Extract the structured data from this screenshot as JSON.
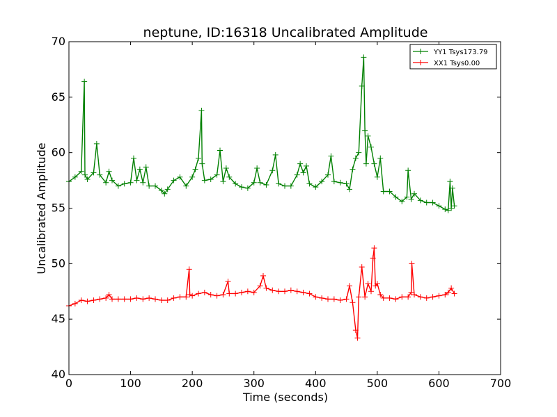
{
  "chart_data": {
    "type": "line",
    "title": "neptune, ID:16318 Uncalibrated Amplitude",
    "xlabel": "Time (seconds)",
    "ylabel": "Uncalibrated Amplitude",
    "xlim": [
      0,
      700
    ],
    "ylim": [
      40,
      70
    ],
    "xticks": [
      "0",
      "100",
      "200",
      "300",
      "400",
      "500",
      "600",
      "700"
    ],
    "yticks": [
      "40",
      "45",
      "50",
      "55",
      "60",
      "65",
      "70"
    ],
    "grid": false,
    "legend_position": "top-right",
    "marker": "+",
    "series": [
      {
        "name": "YY1 Tsys173.79",
        "color": "#008000",
        "x": [
          0,
          10,
          20,
          25,
          26,
          30,
          40,
          45,
          50,
          60,
          65,
          70,
          80,
          90,
          100,
          105,
          110,
          115,
          120,
          125,
          130,
          140,
          150,
          155,
          160,
          170,
          180,
          190,
          200,
          205,
          210,
          215,
          216,
          220,
          230,
          240,
          245,
          250,
          255,
          260,
          270,
          280,
          290,
          300,
          305,
          310,
          320,
          330,
          335,
          340,
          350,
          360,
          370,
          375,
          380,
          385,
          390,
          400,
          410,
          420,
          425,
          430,
          440,
          450,
          455,
          460,
          465,
          470,
          475,
          478,
          480,
          482,
          485,
          490,
          495,
          500,
          505,
          510,
          520,
          530,
          540,
          548,
          550,
          555,
          560,
          570,
          580,
          590,
          600,
          610,
          615,
          618,
          620,
          622,
          625
        ],
        "y": [
          57.4,
          57.8,
          58.3,
          66.4,
          58.0,
          57.6,
          58.2,
          60.8,
          58.0,
          57.3,
          58.3,
          57.5,
          57.0,
          57.2,
          57.3,
          59.5,
          57.5,
          58.5,
          57.3,
          58.7,
          57.0,
          57.0,
          56.6,
          56.3,
          56.7,
          57.5,
          57.8,
          57.0,
          57.8,
          58.5,
          59.5,
          63.8,
          59.0,
          57.5,
          57.6,
          58.0,
          60.2,
          57.4,
          58.6,
          57.8,
          57.2,
          56.9,
          56.8,
          57.3,
          58.6,
          57.3,
          57.1,
          58.4,
          59.8,
          57.2,
          57.0,
          57.0,
          58.0,
          59.0,
          58.2,
          58.8,
          57.2,
          56.9,
          57.4,
          58.0,
          59.7,
          57.4,
          57.3,
          57.2,
          56.7,
          58.5,
          59.5,
          60.0,
          66.0,
          68.6,
          62.0,
          59.0,
          61.5,
          60.5,
          59.0,
          57.8,
          59.5,
          56.5,
          56.5,
          56.0,
          55.6,
          56.0,
          58.4,
          55.8,
          56.3,
          55.7,
          55.5,
          55.5,
          55.2,
          54.9,
          54.8,
          57.4,
          55.0,
          56.8,
          55.2
        ]
      },
      {
        "name": "XX1 Tsys0.00",
        "color": "#ff0000",
        "x": [
          0,
          10,
          20,
          30,
          40,
          50,
          60,
          65,
          70,
          80,
          90,
          100,
          110,
          120,
          130,
          140,
          150,
          160,
          170,
          180,
          190,
          195,
          196,
          200,
          210,
          220,
          230,
          240,
          250,
          258,
          260,
          270,
          280,
          290,
          300,
          310,
          315,
          320,
          330,
          340,
          350,
          360,
          370,
          380,
          390,
          400,
          410,
          420,
          430,
          440,
          450,
          455,
          460,
          465,
          468,
          470,
          475,
          480,
          485,
          490,
          493,
          495,
          497,
          500,
          505,
          510,
          520,
          530,
          540,
          550,
          555,
          556,
          560,
          570,
          580,
          590,
          600,
          610,
          615,
          620,
          625
        ],
        "y": [
          46.2,
          46.4,
          46.7,
          46.6,
          46.7,
          46.8,
          46.9,
          47.2,
          46.8,
          46.8,
          46.8,
          46.8,
          46.9,
          46.8,
          46.9,
          46.8,
          46.7,
          46.7,
          46.9,
          47.0,
          47.0,
          49.5,
          47.2,
          47.1,
          47.3,
          47.4,
          47.2,
          47.1,
          47.2,
          48.4,
          47.3,
          47.3,
          47.4,
          47.5,
          47.4,
          48.0,
          48.9,
          47.8,
          47.6,
          47.5,
          47.5,
          47.6,
          47.5,
          47.4,
          47.3,
          47.0,
          46.9,
          46.8,
          46.8,
          46.7,
          46.8,
          48.0,
          46.5,
          44.0,
          43.3,
          47.0,
          49.7,
          47.0,
          48.2,
          47.5,
          50.5,
          51.4,
          48.0,
          48.2,
          47.2,
          46.9,
          46.9,
          46.8,
          47.0,
          47.0,
          47.4,
          50.0,
          47.2,
          47.0,
          46.9,
          47.0,
          47.1,
          47.2,
          47.4,
          47.8,
          47.3
        ]
      }
    ]
  }
}
